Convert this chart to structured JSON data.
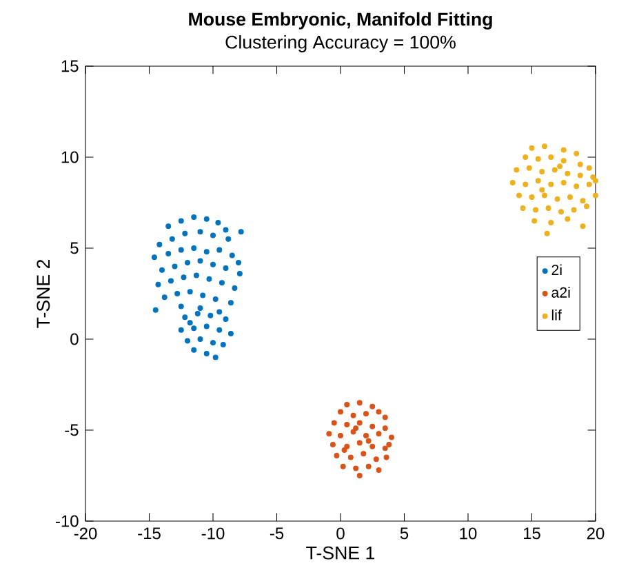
{
  "chart_data": {
    "type": "scatter",
    "title": "Mouse Embryonic, Manifold Fitting",
    "subtitle": "Clustering Accuracy = 100%",
    "xlabel": "T-SNE 1",
    "ylabel": "T-SNE 2",
    "xlim": [
      -20,
      20
    ],
    "ylim": [
      -10,
      15
    ],
    "xticks": [
      -20,
      -15,
      -10,
      -5,
      0,
      5,
      10,
      15,
      20
    ],
    "yticks": [
      -10,
      -5,
      0,
      5,
      10,
      15
    ],
    "grid": false,
    "legend": "right",
    "marker": "circle",
    "series": [
      {
        "name": "2i",
        "color": "#0072bd",
        "x": [
          -13.5,
          -12.5,
          -11.5,
          -10.5,
          -9.6,
          -9.0,
          -14.2,
          -13.2,
          -12.2,
          -11.0,
          -10.0,
          -8.8,
          -7.8,
          -14.6,
          -13.5,
          -12.5,
          -11.5,
          -10.5,
          -9.5,
          -8.5,
          -14.0,
          -13.0,
          -12.0,
          -11.0,
          -10.0,
          -9.0,
          -8.0,
          -14.3,
          -13.3,
          -12.3,
          -11.3,
          -10.3,
          -9.3,
          -8.3,
          -13.8,
          -12.8,
          -11.8,
          -10.8,
          -9.8,
          -8.6,
          -14.5,
          -12.5,
          -11.0,
          -9.5,
          -7.9,
          -12.2,
          -11.2,
          -10.2,
          -9.0,
          -12.5,
          -11.5,
          -10.5,
          -9.5,
          -8.6,
          -12.0,
          -11.0,
          -10.0,
          -9.2,
          -11.5,
          -10.5,
          -9.8,
          -11.8
        ],
        "values": [
          6.2,
          6.5,
          6.7,
          6.6,
          6.4,
          6.0,
          5.2,
          5.5,
          5.8,
          5.9,
          5.7,
          5.5,
          5.9,
          4.5,
          4.7,
          4.9,
          5.0,
          4.8,
          4.9,
          4.6,
          3.8,
          4.0,
          4.2,
          4.3,
          4.1,
          3.9,
          4.2,
          3.0,
          3.2,
          3.4,
          3.5,
          3.3,
          3.1,
          2.8,
          2.3,
          2.5,
          2.6,
          2.4,
          2.2,
          2.0,
          1.6,
          1.8,
          1.7,
          1.5,
          3.6,
          1.2,
          1.4,
          1.3,
          1.1,
          0.5,
          0.6,
          0.7,
          0.5,
          0.3,
          -0.1,
          0.0,
          -0.2,
          -0.3,
          -0.6,
          -0.8,
          -1.0,
          0.9
        ]
      },
      {
        "name": "a2i",
        "color": "#d95319",
        "x": [
          0.5,
          1.5,
          2.5,
          3.0,
          0.0,
          1.0,
          2.0,
          3.5,
          -0.5,
          0.5,
          1.5,
          2.5,
          3.5,
          -0.9,
          0.0,
          1.0,
          2.0,
          3.0,
          4.0,
          -0.6,
          0.5,
          1.5,
          2.5,
          3.5,
          -0.3,
          0.8,
          1.8,
          2.8,
          3.6,
          0.2,
          1.2,
          2.2,
          3.0,
          1.5,
          0.3,
          1.2,
          2.2,
          3.8
        ],
        "values": [
          -3.6,
          -3.5,
          -3.7,
          -4.0,
          -4.0,
          -4.2,
          -4.1,
          -4.3,
          -4.6,
          -4.7,
          -4.6,
          -4.8,
          -4.9,
          -5.2,
          -5.3,
          -5.1,
          -5.3,
          -5.2,
          -5.4,
          -5.8,
          -5.9,
          -5.7,
          -5.9,
          -6.0,
          -6.4,
          -6.5,
          -6.3,
          -6.6,
          -6.5,
          -7.0,
          -7.1,
          -7.0,
          -7.2,
          -7.5,
          -6.1,
          -4.9,
          -5.6,
          -5.8
        ]
      },
      {
        "name": "lif",
        "color": "#edb120",
        "x": [
          15.0,
          16.0,
          17.5,
          18.5,
          14.5,
          15.5,
          16.5,
          17.5,
          18.8,
          19.5,
          13.8,
          14.8,
          15.8,
          16.8,
          17.8,
          18.8,
          19.8,
          13.5,
          14.5,
          15.5,
          16.5,
          17.5,
          18.5,
          19.5,
          20.0,
          14.0,
          15.0,
          16.0,
          17.0,
          18.0,
          19.0,
          20.0,
          14.3,
          15.3,
          16.3,
          17.3,
          18.3,
          19.3,
          15.2,
          16.5,
          17.8,
          16.2,
          19.0,
          15.8,
          17.2
        ],
        "values": [
          10.5,
          10.6,
          10.4,
          10.2,
          10.0,
          9.9,
          10.0,
          9.8,
          9.6,
          9.4,
          9.3,
          9.4,
          9.2,
          9.3,
          9.1,
          9.0,
          8.9,
          8.6,
          8.5,
          8.7,
          8.5,
          8.6,
          8.4,
          8.5,
          8.7,
          7.9,
          7.8,
          7.9,
          7.7,
          7.8,
          7.6,
          7.9,
          7.2,
          7.1,
          7.2,
          7.0,
          7.1,
          7.3,
          6.5,
          6.4,
          6.6,
          5.8,
          6.2,
          8.2,
          9.5
        ]
      }
    ]
  }
}
